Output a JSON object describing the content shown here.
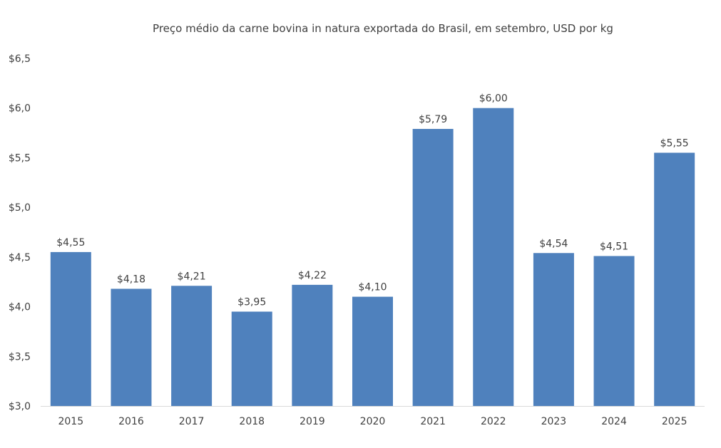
{
  "chart_data": {
    "type": "bar",
    "title": "Preço médio da carne bovina in natura exportada do Brasil, em setembro, USD por kg",
    "xlabel": "",
    "ylabel": "",
    "categories": [
      "2015",
      "2016",
      "2017",
      "2018",
      "2019",
      "2020",
      "2021",
      "2022",
      "2023",
      "2024",
      "2025"
    ],
    "values": [
      4.55,
      4.18,
      4.21,
      3.95,
      4.22,
      4.1,
      5.79,
      6.0,
      4.54,
      4.51,
      5.55
    ],
    "data_labels": [
      "$4,55",
      "$4,18",
      "$4,21",
      "$3,95",
      "$4,22",
      "$4,10",
      "$5,79",
      "$6,00",
      "$4,54",
      "$4,51",
      "$5,55"
    ],
    "ylim": [
      3.0,
      6.5
    ],
    "yticks": [
      3.0,
      3.5,
      4.0,
      4.5,
      5.0,
      5.5,
      6.0,
      6.5
    ],
    "ytick_labels": [
      "$3,0",
      "$3,5",
      "$4,0",
      "$4,5",
      "$5,0",
      "$5,5",
      "$6,0",
      "$6,5"
    ],
    "grid": false,
    "legend": "none",
    "bar_color": "#4f81bd"
  }
}
